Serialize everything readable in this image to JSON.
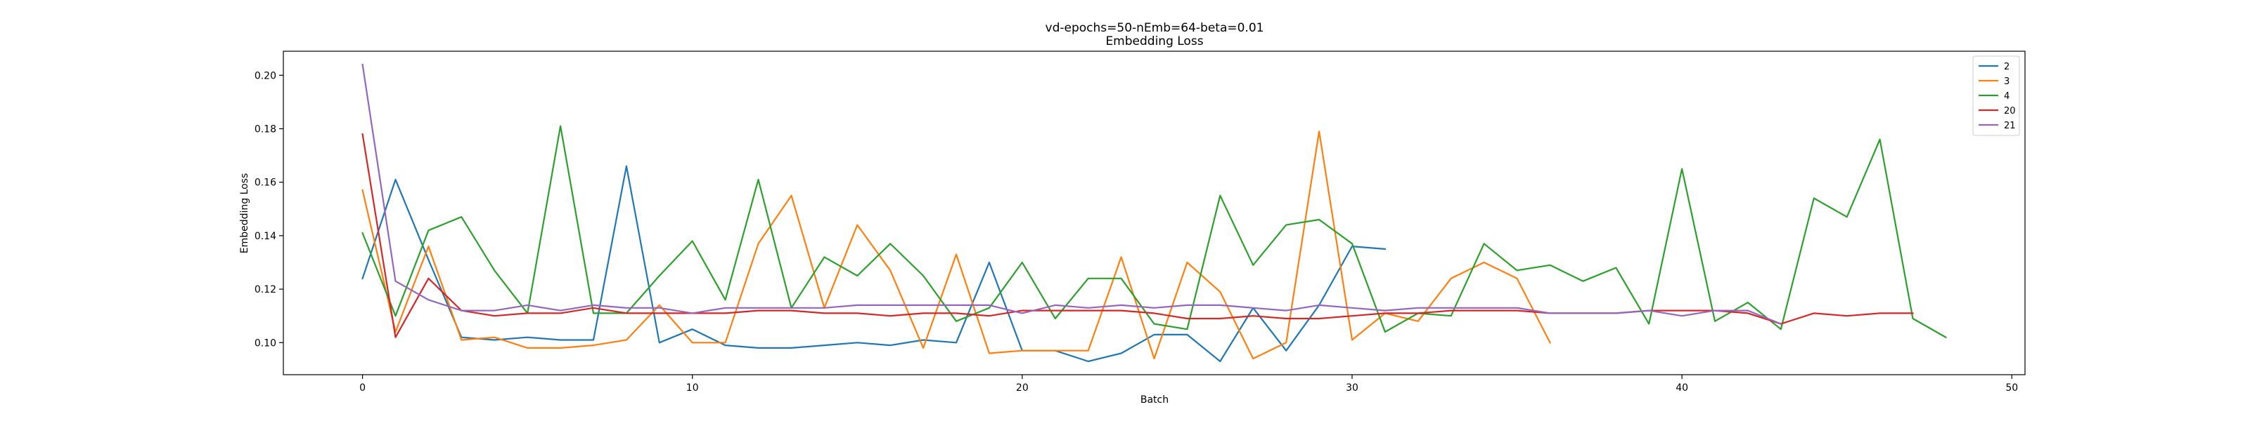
{
  "chart_data": {
    "type": "line",
    "title": "vd-epochs=50-nEmb=64-beta=0.01",
    "subtitle": "Embedding Loss",
    "xlabel": "Batch",
    "ylabel": "Embedding Loss",
    "xlim": [
      -2.4,
      50.4
    ],
    "ylim": [
      0.088,
      0.209
    ],
    "xticks": [
      0,
      10,
      20,
      30,
      40,
      50
    ],
    "yticks": [
      0.1,
      0.12,
      0.14,
      0.16,
      0.18,
      0.2
    ],
    "ytick_labels": [
      "0.10",
      "0.12",
      "0.14",
      "0.16",
      "0.18",
      "0.20"
    ],
    "grid": false,
    "legend_position": "top-right",
    "series": [
      {
        "name": "2",
        "color": "#1f77b4",
        "values": [
          0.124,
          0.161,
          0.131,
          0.102,
          0.101,
          0.102,
          0.101,
          0.101,
          0.166,
          0.1,
          0.105,
          0.099,
          0.098,
          0.098,
          0.099,
          0.1,
          0.099,
          0.101,
          0.1,
          0.13,
          0.097,
          0.097,
          0.093,
          0.096,
          0.103,
          0.103,
          0.093,
          0.113,
          0.097,
          0.114,
          0.136,
          0.135
        ]
      },
      {
        "name": "3",
        "color": "#ff7f0e",
        "values": [
          0.157,
          0.104,
          0.136,
          0.101,
          0.102,
          0.098,
          0.098,
          0.099,
          0.101,
          0.114,
          0.1,
          0.1,
          0.137,
          0.155,
          0.113,
          0.144,
          0.127,
          0.098,
          0.133,
          0.096,
          0.097,
          0.097,
          0.097,
          0.132,
          0.094,
          0.13,
          0.119,
          0.094,
          0.1,
          0.179,
          0.101,
          0.111,
          0.108,
          0.124,
          0.13,
          0.124,
          0.1
        ]
      },
      {
        "name": "4",
        "color": "#2ca02c",
        "values": [
          0.141,
          0.11,
          0.142,
          0.147,
          0.127,
          0.111,
          0.181,
          0.111,
          0.111,
          0.125,
          0.138,
          0.116,
          0.161,
          0.113,
          0.132,
          0.125,
          0.137,
          0.125,
          0.108,
          0.113,
          0.13,
          0.109,
          0.124,
          0.124,
          0.107,
          0.105,
          0.155,
          0.129,
          0.144,
          0.146,
          0.137,
          0.104,
          0.111,
          0.11,
          0.137,
          0.127,
          0.129,
          0.123,
          0.128,
          0.107,
          0.165,
          0.108,
          0.115,
          0.105,
          0.154,
          0.147,
          0.176,
          0.109,
          0.102
        ]
      },
      {
        "name": "20",
        "color": "#d62728",
        "values": [
          0.178,
          0.102,
          0.124,
          0.112,
          0.11,
          0.111,
          0.111,
          0.113,
          0.111,
          0.111,
          0.111,
          0.111,
          0.112,
          0.112,
          0.111,
          0.111,
          0.11,
          0.111,
          0.111,
          0.11,
          0.112,
          0.112,
          0.112,
          0.112,
          0.111,
          0.109,
          0.109,
          0.11,
          0.109,
          0.109,
          0.11,
          0.111,
          0.111,
          0.112,
          0.112,
          0.112,
          0.111,
          0.111,
          0.111,
          0.112,
          0.112,
          0.112,
          0.111,
          0.107,
          0.111,
          0.11,
          0.111,
          0.111
        ]
      },
      {
        "name": "21",
        "color": "#9467bd",
        "values": [
          0.204,
          0.123,
          0.116,
          0.112,
          0.112,
          0.114,
          0.112,
          0.114,
          0.113,
          0.113,
          0.111,
          0.113,
          0.113,
          0.113,
          0.113,
          0.114,
          0.114,
          0.114,
          0.114,
          0.114,
          0.111,
          0.114,
          0.113,
          0.114,
          0.113,
          0.114,
          0.114,
          0.113,
          0.112,
          0.114,
          0.113,
          0.112,
          0.113,
          0.113,
          0.113,
          0.113,
          0.111,
          0.111,
          0.111,
          0.112,
          0.11,
          0.112,
          0.112,
          0.107
        ]
      }
    ]
  }
}
